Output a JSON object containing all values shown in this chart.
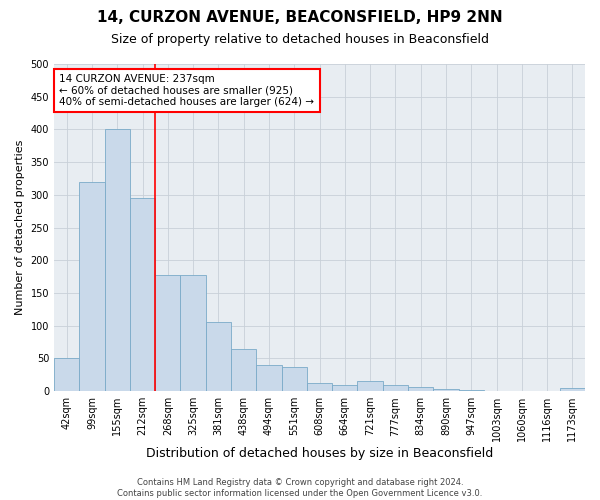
{
  "title1": "14, CURZON AVENUE, BEACONSFIELD, HP9 2NN",
  "title2": "Size of property relative to detached houses in Beaconsfield",
  "xlabel": "Distribution of detached houses by size in Beaconsfield",
  "ylabel": "Number of detached properties",
  "footer1": "Contains HM Land Registry data © Crown copyright and database right 2024.",
  "footer2": "Contains public sector information licensed under the Open Government Licence v3.0.",
  "categories": [
    "42sqm",
    "99sqm",
    "155sqm",
    "212sqm",
    "268sqm",
    "325sqm",
    "381sqm",
    "438sqm",
    "494sqm",
    "551sqm",
    "608sqm",
    "664sqm",
    "721sqm",
    "777sqm",
    "834sqm",
    "890sqm",
    "947sqm",
    "1003sqm",
    "1060sqm",
    "1116sqm",
    "1173sqm"
  ],
  "values": [
    50,
    320,
    400,
    295,
    178,
    178,
    105,
    65,
    40,
    37,
    12,
    10,
    15,
    10,
    6,
    3,
    2,
    0,
    1,
    0,
    5
  ],
  "bar_color": "#c9d9ea",
  "bar_edge_color": "#7aaac8",
  "vline_x": 3.5,
  "vline_color": "red",
  "annotation_title": "14 CURZON AVENUE: 237sqm",
  "annotation_line1": "← 60% of detached houses are smaller (925)",
  "annotation_line2": "40% of semi-detached houses are larger (624) →",
  "annotation_box_color": "white",
  "annotation_box_edge": "red",
  "ylim": [
    0,
    500
  ],
  "yticks": [
    0,
    50,
    100,
    150,
    200,
    250,
    300,
    350,
    400,
    450,
    500
  ],
  "grid_color": "#c8d0d8",
  "bg_color": "#e8edf2",
  "title1_fontsize": 11,
  "title2_fontsize": 9,
  "xlabel_fontsize": 9,
  "ylabel_fontsize": 8,
  "tick_fontsize": 7,
  "footer_fontsize": 6,
  "annotation_fontsize": 7.5
}
